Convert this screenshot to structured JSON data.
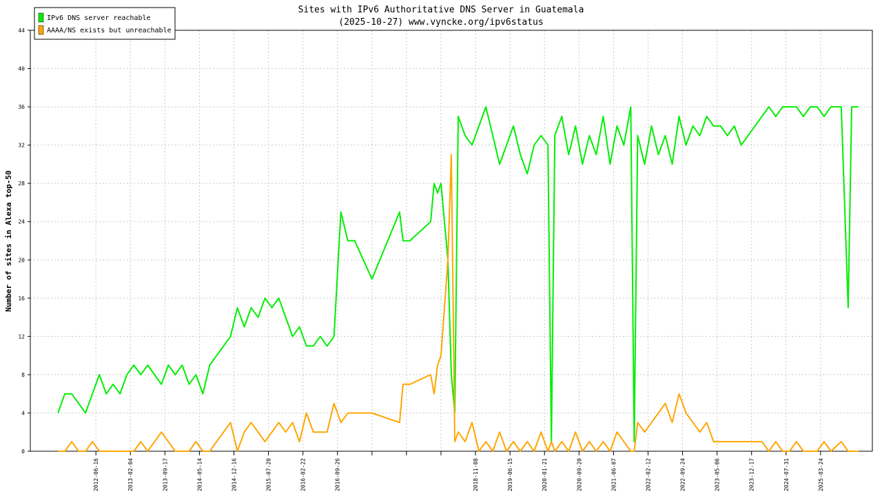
{
  "chart_data": {
    "type": "line",
    "title": "Sites with IPv6 Authoritative DNS Server in Guatemala",
    "subtitle": "(2025-10-27) www.vyncke.org/ipv6status",
    "y_label": "Number of sites in Alexa top-50",
    "legend": "upper left",
    "grid": true,
    "xlim": [
      0,
      244
    ],
    "ylim": [
      0,
      44
    ],
    "yticks": [
      0,
      4,
      8,
      12,
      16,
      20,
      24,
      28,
      32,
      36,
      40,
      44
    ],
    "xticks": [
      {
        "value": 19,
        "label": "2012-06-16"
      },
      {
        "value": 29,
        "label": "2013-02-04"
      },
      {
        "value": 39,
        "label": "2013-09-17"
      },
      {
        "value": 49,
        "label": "2014-05-14"
      },
      {
        "value": 59,
        "label": "2014-12-16"
      },
      {
        "value": 69,
        "label": "2015-07-20"
      },
      {
        "value": 79,
        "label": "2016-02-22"
      },
      {
        "value": 89,
        "label": "2016-09-26"
      },
      {
        "value": 99,
        "label": null
      },
      {
        "value": 109,
        "label": null
      },
      {
        "value": 119,
        "label": null
      },
      {
        "value": 129,
        "label": "2018-11-08"
      },
      {
        "value": 139,
        "label": "2019-06-15"
      },
      {
        "value": 149,
        "label": "2020-01-21"
      },
      {
        "value": 159,
        "label": "2020-09-20"
      },
      {
        "value": 169,
        "label": "2021-06-07"
      },
      {
        "value": 179,
        "label": "2022-02-12"
      },
      {
        "value": 189,
        "label": "2022-09-24"
      },
      {
        "value": 199,
        "label": "2023-05-06"
      },
      {
        "value": 209,
        "label": "2023-12-17"
      },
      {
        "value": 219,
        "label": "2024-07-31"
      },
      {
        "value": 229,
        "label": "2025-03-24"
      }
    ],
    "x": [
      8,
      10,
      12,
      14,
      16,
      18,
      20,
      22,
      24,
      26,
      28,
      30,
      32,
      34,
      36,
      38,
      40,
      42,
      44,
      46,
      48,
      50,
      52,
      54,
      56,
      58,
      60,
      62,
      64,
      66,
      68,
      70,
      72,
      74,
      76,
      78,
      80,
      82,
      84,
      86,
      88,
      90,
      92,
      94,
      99,
      107,
      108,
      110,
      116,
      117,
      118,
      119,
      120,
      121,
      122,
      123,
      124,
      126,
      128,
      130,
      132,
      134,
      136,
      138,
      140,
      142,
      144,
      146,
      148,
      150,
      151,
      152,
      154,
      156,
      158,
      160,
      162,
      164,
      166,
      168,
      170,
      172,
      174,
      175,
      176,
      178,
      180,
      182,
      184,
      186,
      188,
      190,
      192,
      194,
      196,
      198,
      200,
      202,
      204,
      206,
      208,
      210,
      212,
      214,
      216,
      218,
      220,
      222,
      224,
      226,
      228,
      230,
      232,
      235,
      237,
      238,
      240
    ],
    "series": [
      {
        "name": "IPv6 DNS server reachable",
        "color": "#00ee00",
        "values": [
          4,
          6,
          6,
          5,
          4,
          6,
          8,
          6,
          7,
          6,
          8,
          9,
          8,
          9,
          8,
          7,
          9,
          8,
          9,
          7,
          8,
          6,
          9,
          10,
          11,
          12,
          15,
          13,
          15,
          14,
          16,
          15,
          16,
          14,
          12,
          13,
          11,
          11,
          12,
          11,
          12,
          25,
          22,
          22,
          18,
          25,
          22,
          22,
          24,
          28,
          27,
          28,
          24,
          20,
          8,
          4,
          35,
          33,
          32,
          34,
          36,
          33,
          30,
          32,
          34,
          31,
          29,
          32,
          33,
          32,
          1,
          33,
          35,
          31,
          34,
          30,
          33,
          31,
          35,
          30,
          34,
          32,
          36,
          1,
          33,
          30,
          34,
          31,
          33,
          30,
          35,
          32,
          34,
          33,
          35,
          34,
          34,
          33,
          34,
          32,
          33,
          34,
          35,
          36,
          35,
          36,
          36,
          36,
          35,
          36,
          36,
          35,
          36,
          36,
          15,
          36,
          36
        ]
      },
      {
        "name": "AAAA/NS exists but unreachable",
        "color": "#ffa500",
        "values": [
          0,
          0,
          1,
          0,
          0,
          1,
          0,
          0,
          0,
          0,
          0,
          0,
          1,
          0,
          1,
          2,
          1,
          0,
          0,
          0,
          1,
          0,
          0,
          1,
          2,
          3,
          0,
          2,
          3,
          2,
          1,
          2,
          3,
          2,
          3,
          1,
          4,
          2,
          2,
          2,
          5,
          3,
          4,
          4,
          4,
          3,
          7,
          7,
          8,
          6,
          9,
          10,
          15,
          20,
          31,
          1,
          2,
          1,
          3,
          0,
          1,
          0,
          2,
          0,
          1,
          0,
          1,
          0,
          2,
          0,
          1,
          0,
          1,
          0,
          2,
          0,
          1,
          0,
          1,
          0,
          2,
          1,
          0,
          0,
          3,
          2,
          3,
          4,
          5,
          3,
          6,
          4,
          3,
          2,
          3,
          1,
          1,
          1,
          1,
          1,
          1,
          1,
          1,
          0,
          1,
          0,
          0,
          1,
          0,
          0,
          0,
          1,
          0,
          1,
          0,
          0,
          0
        ]
      }
    ]
  }
}
